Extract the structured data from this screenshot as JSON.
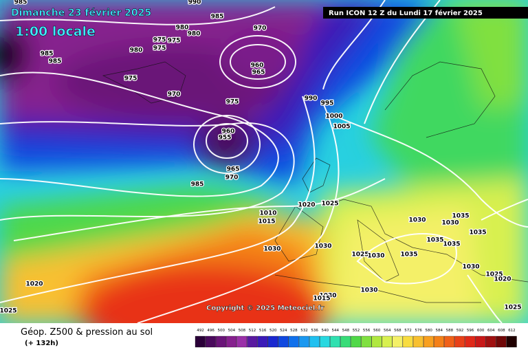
{
  "header": {
    "date": "Dimanche 23 février 2025",
    "time": "1:00 locale",
    "run": "Run ICON 12 Z du Lundi 17 février 2025"
  },
  "copyright": "Copyright © 2025 Meteociel.fr",
  "footer": {
    "title": "Géop. Z500 & pression au sol",
    "lead": "(+ 132h)"
  },
  "isobar_labels": [
    985,
    990,
    985,
    980,
    980,
    975,
    975,
    975,
    980,
    985,
    985,
    975,
    970,
    960,
    965,
    970,
    975,
    990,
    995,
    1000,
    1005,
    960,
    955,
    965,
    970,
    985,
    1020,
    1025,
    1010,
    1015,
    1030,
    1030,
    1035,
    1035,
    1035,
    1035,
    1030,
    1030,
    1025,
    1030,
    1035,
    1030,
    1025,
    1020,
    1020,
    1030,
    1030,
    1015,
    1025,
    1025
  ],
  "colorbar": {
    "labels": [
      492,
      496,
      500,
      504,
      508,
      512,
      516,
      520,
      524,
      528,
      532,
      536,
      540,
      544,
      548,
      552,
      556,
      560,
      564,
      568,
      572,
      576,
      580,
      584,
      588,
      592,
      596,
      600,
      604,
      608,
      612
    ],
    "colors": [
      "#2a0038",
      "#4a0a5c",
      "#6a1478",
      "#86208e",
      "#9a30a8",
      "#5a1aa0",
      "#3a1ab8",
      "#1a28d0",
      "#1048e0",
      "#1070ec",
      "#1a98f0",
      "#20c0f0",
      "#28d8e0",
      "#30e0b0",
      "#38dc78",
      "#50d848",
      "#80e040",
      "#b0e840",
      "#d8f050",
      "#f4f068",
      "#f8dc40",
      "#f8c030",
      "#f8a020",
      "#f48018",
      "#f06018",
      "#e84018",
      "#e02818",
      "#c81818",
      "#a01010",
      "#700808",
      "#200000"
    ]
  }
}
